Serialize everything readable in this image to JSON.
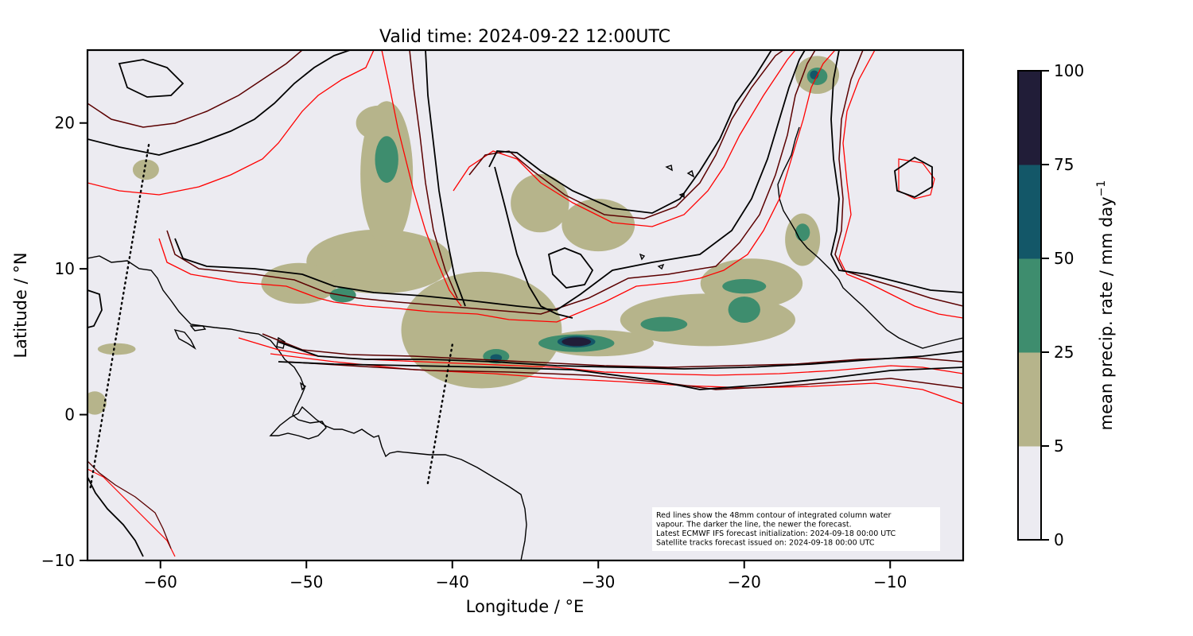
{
  "title": "Valid time: 2024-09-22 12:00UTC",
  "x_axis": {
    "label": "Longitude / °E",
    "range": [
      -65,
      -5
    ],
    "ticks": [
      -60,
      -50,
      -40,
      -30,
      -20,
      -10
    ],
    "tick_labels": [
      "−60",
      "−50",
      "−40",
      "−30",
      "−20",
      "−10"
    ]
  },
  "y_axis": {
    "label": "Latitude / °N",
    "range": [
      -10,
      25
    ],
    "ticks": [
      -10,
      0,
      10,
      20
    ],
    "tick_labels": [
      "−10",
      "0",
      "10",
      "20"
    ]
  },
  "colorbar": {
    "label": "mean precip. rate / mm day",
    "label_exponent": "−1",
    "levels": [
      0,
      5,
      25,
      50,
      75,
      100
    ],
    "level_labels": [
      "0",
      "5",
      "25",
      "50",
      "75",
      "100"
    ],
    "colors": [
      "#ecebf1",
      "#b6b48b",
      "#3e8d6e",
      "#135768",
      "#211d38"
    ]
  },
  "colors": {
    "background": "#ecebf1",
    "iwv_newest": "#000000",
    "iwv_mid": "#5b0000",
    "iwv_oldest": "#ff0000",
    "coastline": "#000000"
  },
  "note": {
    "lines": [
      "Red lines show the 48mm contour of integrated column water",
      "vapour. The darker the line, the newer the forecast.",
      "Latest ECMWF IFS forecast initialization: 2024-09-18 00:00 UTC",
      "Satellite tracks forecast issued on: 2024-09-18 00:00 UTC"
    ]
  },
  "chart_data": {
    "type": "heatmap",
    "title": "Valid time: 2024-09-22 12:00UTC",
    "xlabel": "Longitude / °E",
    "ylabel": "Latitude / °N",
    "xlim": [
      -65,
      -5
    ],
    "ylim": [
      -10,
      25
    ],
    "precip_areas": [
      {
        "lon": -38,
        "lat": 5.8,
        "rx": 5.5,
        "ry": 4.0,
        "rate": 15
      },
      {
        "lon": -45,
        "lat": 10.5,
        "rx": 5.0,
        "ry": 2.2,
        "rate": 15
      },
      {
        "lon": -50.5,
        "lat": 9.0,
        "rx": 2.6,
        "ry": 1.4,
        "rate": 15
      },
      {
        "lon": -44.5,
        "lat": 16.5,
        "rx": 1.8,
        "ry": 5.0,
        "rate": 15
      },
      {
        "lon": -45,
        "lat": 20.0,
        "rx": 1.6,
        "ry": 1.2,
        "rate": 15
      },
      {
        "lon": -34,
        "lat": 14.5,
        "rx": 2.0,
        "ry": 2.0,
        "rate": 15
      },
      {
        "lon": -30,
        "lat": 13.0,
        "rx": 2.5,
        "ry": 1.8,
        "rate": 15
      },
      {
        "lon": -30,
        "lat": 4.9,
        "rx": 3.8,
        "ry": 0.9,
        "rate": 15
      },
      {
        "lon": -22.5,
        "lat": 6.5,
        "rx": 6.0,
        "ry": 1.8,
        "rate": 15
      },
      {
        "lon": -19.5,
        "lat": 9.0,
        "rx": 3.5,
        "ry": 1.7,
        "rate": 15
      },
      {
        "lon": -16,
        "lat": 12.0,
        "rx": 1.2,
        "ry": 1.8,
        "rate": 15
      },
      {
        "lon": -15,
        "lat": 23.3,
        "rx": 1.5,
        "ry": 1.3,
        "rate": 15
      },
      {
        "lon": -37,
        "lat": 4.0,
        "rx": 1.4,
        "ry": 0.8,
        "rate": 15
      },
      {
        "lon": -63,
        "lat": 4.5,
        "rx": 1.3,
        "ry": 0.4,
        "rate": 15
      },
      {
        "lon": -64.5,
        "lat": 0.8,
        "rx": 0.8,
        "ry": 0.8,
        "rate": 15
      },
      {
        "lon": -61,
        "lat": 16.8,
        "rx": 0.9,
        "ry": 0.7,
        "rate": 15
      },
      {
        "lon": -44.5,
        "lat": 17.5,
        "rx": 0.8,
        "ry": 1.6,
        "rate": 35
      },
      {
        "lon": -47.5,
        "lat": 8.2,
        "rx": 0.9,
        "ry": 0.5,
        "rate": 35
      },
      {
        "lon": -31.5,
        "lat": 4.9,
        "rx": 2.6,
        "ry": 0.6,
        "rate": 35
      },
      {
        "lon": -25.5,
        "lat": 6.2,
        "rx": 1.6,
        "ry": 0.5,
        "rate": 35
      },
      {
        "lon": -20.0,
        "lat": 7.2,
        "rx": 1.1,
        "ry": 0.9,
        "rate": 35
      },
      {
        "lon": -20.0,
        "lat": 8.8,
        "rx": 1.5,
        "ry": 0.5,
        "rate": 35
      },
      {
        "lon": -37,
        "lat": 4.0,
        "rx": 0.9,
        "ry": 0.5,
        "rate": 35
      },
      {
        "lon": -15,
        "lat": 23.2,
        "rx": 0.7,
        "ry": 0.6,
        "rate": 35
      },
      {
        "lon": -16,
        "lat": 12.5,
        "rx": 0.5,
        "ry": 0.6,
        "rate": 35
      },
      {
        "lon": -31.5,
        "lat": 5.0,
        "rx": 1.3,
        "ry": 0.4,
        "rate": 60
      },
      {
        "lon": -15.2,
        "lat": 23.3,
        "rx": 0.3,
        "ry": 0.3,
        "rate": 60
      },
      {
        "lon": -37,
        "lat": 3.9,
        "rx": 0.4,
        "ry": 0.25,
        "rate": 60
      },
      {
        "lon": -31.5,
        "lat": 5.0,
        "rx": 1.0,
        "ry": 0.3,
        "rate": 90
      }
    ],
    "satellite_tracks": [
      {
        "lon": [
          -60.8,
          -64.8
        ],
        "lat": [
          18.5,
          -5.0
        ]
      },
      {
        "lon": [
          -40.0,
          -41.7
        ],
        "lat": [
          4.8,
          -4.8
        ]
      }
    ]
  }
}
